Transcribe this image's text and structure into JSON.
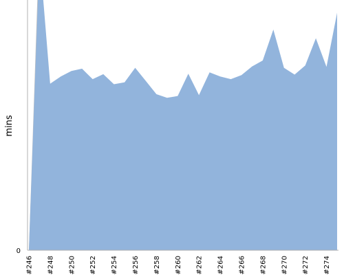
{
  "chart_data": {
    "type": "area",
    "ylabel": "mins",
    "y_ticks": [
      "0"
    ],
    "ylim": [
      0,
      55
    ],
    "x": [
      "#246",
      "#247",
      "#248",
      "#249",
      "#250",
      "#251",
      "#252",
      "#253",
      "#254",
      "#255",
      "#256",
      "#257",
      "#258",
      "#259",
      "#260",
      "#261",
      "#262",
      "#263",
      "#264",
      "#265",
      "#266",
      "#267",
      "#268",
      "#269",
      "#270",
      "#271",
      "#272",
      "#273",
      "#274",
      "#275"
    ],
    "x_tick_labels": [
      "#246",
      "#248",
      "#250",
      "#252",
      "#254",
      "#256",
      "#258",
      "#260",
      "#262",
      "#264",
      "#266",
      "#268",
      "#270",
      "#272",
      "#274"
    ],
    "series": [
      {
        "color": "#92b4dc",
        "values": [
          0,
          65,
          36.6,
          38.2,
          39.4,
          39.9,
          37.6,
          38.7,
          36.5,
          36.9,
          40.1,
          37.2,
          34.3,
          33.5,
          33.9,
          38.8,
          34.1,
          39.1,
          38.2,
          37.6,
          38.5,
          40.4,
          41.7,
          48.5,
          40.1,
          38.6,
          40.6,
          46.6,
          40.3,
          52.2
        ]
      },
      {
        "color": "#c2c2c2",
        "values": [
          0,
          0,
          0,
          0,
          0,
          0,
          0,
          0,
          0,
          0,
          0,
          0,
          0,
          0,
          0,
          0,
          0,
          0,
          0,
          0,
          0,
          0,
          0,
          0,
          0,
          0,
          0,
          0,
          0,
          0
        ]
      }
    ],
    "legend": "none",
    "grid": false
  }
}
